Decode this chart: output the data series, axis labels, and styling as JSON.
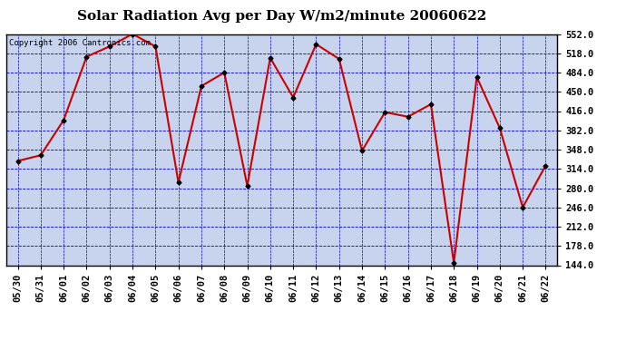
{
  "title": "Solar Radiation Avg per Day W/m2/minute 20060622",
  "copyright": "Copyright 2006 Cantronics.com",
  "dates": [
    "05/30",
    "05/31",
    "06/01",
    "06/02",
    "06/03",
    "06/04",
    "06/05",
    "06/06",
    "06/07",
    "06/08",
    "06/09",
    "06/10",
    "06/11",
    "06/12",
    "06/13",
    "06/14",
    "06/15",
    "06/16",
    "06/17",
    "06/18",
    "06/19",
    "06/20",
    "06/21",
    "06/22"
  ],
  "values": [
    328,
    338,
    400,
    512,
    530,
    552,
    530,
    290,
    460,
    484,
    284,
    510,
    440,
    534,
    508,
    346,
    414,
    406,
    428,
    148,
    476,
    386,
    246,
    320
  ],
  "ylim": [
    144.0,
    552.0
  ],
  "yticks": [
    144.0,
    178.0,
    212.0,
    246.0,
    280.0,
    314.0,
    348.0,
    382.0,
    416.0,
    450.0,
    484.0,
    518.0,
    552.0
  ],
  "line_color": "#cc0000",
  "marker_color": "#000000",
  "bg_color": "#c8d4ee",
  "plot_bg": "#c8d4ee",
  "outer_bg": "#ffffff",
  "grid_color": "#0000bb",
  "title_fontsize": 11,
  "tick_fontsize": 7.5,
  "copyright_fontsize": 6.5
}
